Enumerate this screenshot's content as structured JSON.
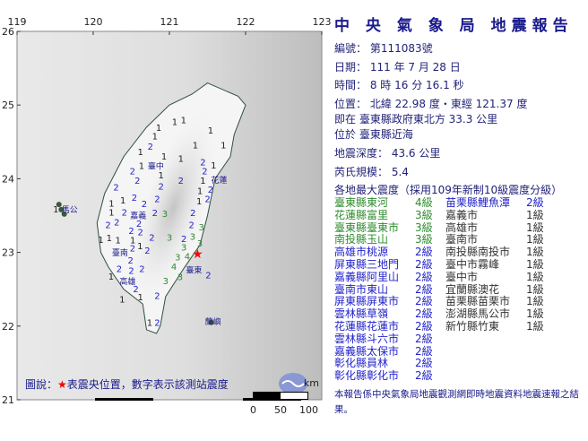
{
  "title": "中 央 氣 象 局 地震報告",
  "report": {
    "number_label": "編號：",
    "number": "第111083號",
    "date_label": "日期：",
    "date": "111 年 7 月 28 日",
    "time_label": "時間：",
    "time": "8 時 16 分 16.1 秒",
    "location_label": "位置：",
    "location": "北緯 22.98 度・東經 121.37 度",
    "relative_location": "即在 臺東縣政府東北方 33.3 公里",
    "region": "位於 臺東縣近海",
    "depth_label": "地震深度：",
    "depth": "43.6 公里",
    "magnitude_label": "芮氏規模：",
    "magnitude": "5.4",
    "intensity_heading": "各地最大震度（採用109年新制10級震度分級）"
  },
  "intensity_colors": {
    "4級": "#2e8b2e",
    "3級": "#2e8b2e",
    "2級": "#2222cc",
    "1級": "#333333"
  },
  "intensities": [
    {
      "name": "臺東縣東河",
      "level": "4級"
    },
    {
      "name": "花蓮縣富里",
      "level": "3級"
    },
    {
      "name": "臺東縣臺東市",
      "level": "3級"
    },
    {
      "name": "南投縣玉山",
      "level": "3級"
    },
    {
      "name": "高雄市桃源",
      "level": "2級"
    },
    {
      "name": "屏東縣三地門",
      "level": "2級"
    },
    {
      "name": "嘉義縣阿里山",
      "level": "2級"
    },
    {
      "name": "臺南市東山",
      "level": "2級"
    },
    {
      "name": "屏東縣屏東市",
      "level": "2級"
    },
    {
      "name": "雲林縣草嶺",
      "level": "2級"
    },
    {
      "name": "花蓮縣花蓮市",
      "level": "2級"
    },
    {
      "name": "雲林縣斗六市",
      "level": "2級"
    },
    {
      "name": "嘉義縣太保市",
      "level": "2級"
    },
    {
      "name": "彰化縣員林",
      "level": "2級"
    },
    {
      "name": "彰化縣彰化市",
      "level": "2級"
    },
    {
      "name": "苗栗縣鯉魚潭",
      "level": "2級"
    },
    {
      "name": "嘉義市",
      "level": "1級"
    },
    {
      "name": "高雄市",
      "level": "1級"
    },
    {
      "name": "臺南市",
      "level": "1級"
    },
    {
      "name": "南投縣南投市",
      "level": "1級"
    },
    {
      "name": "臺中市霧峰",
      "level": "1級"
    },
    {
      "name": "臺中市",
      "level": "1級"
    },
    {
      "name": "宜蘭縣澳花",
      "level": "1級"
    },
    {
      "name": "苗栗縣苗栗市",
      "level": "1級"
    },
    {
      "name": "澎湖縣馬公市",
      "level": "1級"
    },
    {
      "name": "新竹縣竹東",
      "level": "1級"
    }
  ],
  "note": "本報告係中央氣象局地震觀測網即時地震資料地震速報之結果。",
  "map": {
    "lon_ticks": [
      "119",
      "120",
      "121",
      "122",
      "123"
    ],
    "lat_ticks": [
      "26",
      "25",
      "24",
      "23",
      "22",
      "21"
    ],
    "epicenter": {
      "lon": 121.37,
      "lat": 22.98,
      "color": "#ff0000"
    },
    "legend": {
      "prefix": "圖說：",
      "star": "★",
      "text": "表震央位置，數字表示該測站震度"
    },
    "scale": {
      "unit": "km",
      "labels": [
        "0",
        "50",
        "100"
      ]
    },
    "places": [
      {
        "name": "臺中",
        "lon": 120.81,
        "lat": 24.18
      },
      {
        "name": "花蓮",
        "lon": 121.64,
        "lat": 23.99
      },
      {
        "name": "嘉義",
        "lon": 120.58,
        "lat": 23.51
      },
      {
        "name": "臺南",
        "lon": 120.34,
        "lat": 23.01
      },
      {
        "name": "高雄",
        "lon": 120.44,
        "lat": 22.62
      },
      {
        "name": "臺東",
        "lon": 121.31,
        "lat": 22.77
      },
      {
        "name": "蘭嶼",
        "lon": 121.56,
        "lat": 22.07
      },
      {
        "name": "馬公",
        "lon": 119.68,
        "lat": 23.59
      }
    ],
    "stations": [
      [
        121.07,
        24.78,
        1
      ],
      [
        121.15,
        24.8,
        1
      ],
      [
        120.86,
        24.7,
        1
      ],
      [
        121.54,
        24.66,
        1
      ],
      [
        120.81,
        24.58,
        1
      ],
      [
        120.75,
        24.44,
        2
      ],
      [
        120.62,
        24.37,
        1
      ],
      [
        120.93,
        24.31,
        1
      ],
      [
        121.15,
        24.28,
        1
      ],
      [
        121.34,
        24.46,
        1
      ],
      [
        121.71,
        24.46,
        1
      ],
      [
        121.44,
        24.23,
        2
      ],
      [
        121.58,
        24.19,
        1
      ],
      [
        120.67,
        24.18,
        1
      ],
      [
        120.55,
        24.11,
        2
      ],
      [
        120.89,
        24.09,
        1
      ],
      [
        121.15,
        23.98,
        2
      ],
      [
        121.44,
        23.98,
        1
      ],
      [
        121.57,
        24.0,
        2
      ],
      [
        120.58,
        23.98,
        2
      ],
      [
        120.89,
        23.9,
        2
      ],
      [
        120.3,
        23.89,
        2
      ],
      [
        121.4,
        23.84,
        1
      ],
      [
        121.54,
        23.93,
        2
      ],
      [
        120.39,
        23.71,
        1
      ],
      [
        120.24,
        23.67,
        1
      ],
      [
        120.54,
        23.75,
        2
      ],
      [
        120.84,
        23.73,
        2
      ],
      [
        121.39,
        23.7,
        1
      ],
      [
        121.5,
        23.73,
        2
      ],
      [
        120.67,
        23.63,
        2
      ],
      [
        120.48,
        23.55,
        2
      ],
      [
        120.24,
        23.55,
        1
      ],
      [
        120.81,
        23.54,
        2
      ],
      [
        120.94,
        23.53,
        3
      ],
      [
        120.31,
        23.49,
        2
      ],
      [
        120.6,
        23.47,
        2
      ],
      [
        121.31,
        23.54,
        2
      ],
      [
        121.29,
        23.38,
        2
      ],
      [
        120.23,
        23.38,
        2
      ],
      [
        121.42,
        23.35,
        3
      ],
      [
        120.5,
        23.3,
        2
      ],
      [
        120.62,
        23.28,
        2
      ],
      [
        120.1,
        23.18,
        1
      ],
      [
        120.21,
        23.2,
        1
      ],
      [
        120.29,
        23.17,
        1
      ],
      [
        120.52,
        23.21,
        1
      ],
      [
        120.77,
        23.21,
        2
      ],
      [
        121.0,
        23.21,
        3
      ],
      [
        121.19,
        23.19,
        2
      ],
      [
        121.27,
        23.22,
        3
      ],
      [
        121.19,
        23.11,
        3
      ],
      [
        121.33,
        23.13,
        3
      ],
      [
        121.27,
        22.99,
        4
      ],
      [
        120.58,
        23.09,
        1
      ],
      [
        120.64,
        23.03,
        2
      ],
      [
        120.34,
        23.06,
        2
      ],
      [
        121.11,
        22.94,
        3
      ],
      [
        121.06,
        22.85,
        4
      ],
      [
        121.14,
        22.78,
        3
      ],
      [
        120.49,
        22.9,
        2
      ],
      [
        120.34,
        22.78,
        2
      ],
      [
        120.5,
        22.76,
        2
      ],
      [
        120.64,
        22.78,
        2
      ],
      [
        120.27,
        22.68,
        1
      ],
      [
        120.56,
        22.51,
        2
      ],
      [
        120.62,
        22.4,
        1
      ],
      [
        121.44,
        22.7,
        2
      ],
      [
        120.95,
        22.62,
        3
      ],
      [
        120.84,
        22.42,
        2
      ],
      [
        120.38,
        22.37,
        1
      ],
      [
        120.74,
        22.05,
        1
      ],
      [
        120.84,
        22.05,
        2
      ],
      [
        119.58,
        23.59,
        1
      ]
    ]
  }
}
